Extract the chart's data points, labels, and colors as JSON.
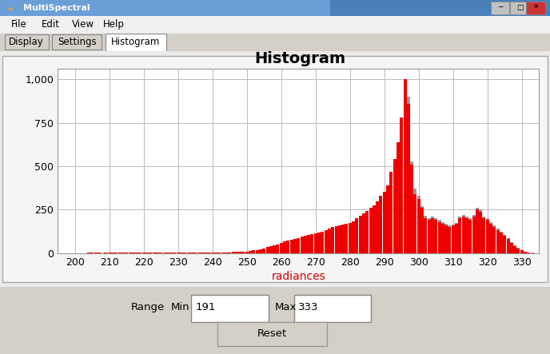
{
  "title": "Histogram",
  "xlabel": "radiances",
  "xlabel_color": "#cc0000",
  "title_fontsize": 14,
  "title_fontweight": "bold",
  "xlim": [
    195,
    335
  ],
  "ylim": [
    0,
    1060
  ],
  "yticks": [
    0,
    250,
    500,
    750,
    1000
  ],
  "xticks": [
    200,
    210,
    220,
    230,
    240,
    250,
    260,
    270,
    280,
    290,
    300,
    310,
    320,
    330
  ],
  "bar_color_red": "#ee0000",
  "bar_color_gray": "#999999",
  "bg_color": "#d4d0c8",
  "plot_bg_color": "#ffffff",
  "grid_color": "#bbbbbb",
  "red_values": {
    "200": 0,
    "201": 0,
    "202": 1,
    "203": 0,
    "204": 2,
    "205": 4,
    "206": 3,
    "207": 2,
    "208": 1,
    "209": 3,
    "210": 5,
    "211": 4,
    "212": 3,
    "213": 3,
    "214": 4,
    "215": 3,
    "216": 2,
    "217": 3,
    "218": 2,
    "219": 2,
    "220": 4,
    "221": 3,
    "222": 3,
    "223": 2,
    "224": 3,
    "225": 2,
    "226": 2,
    "227": 2,
    "228": 3,
    "229": 2,
    "230": 3,
    "231": 2,
    "232": 2,
    "233": 3,
    "234": 2,
    "235": 2,
    "236": 2,
    "237": 3,
    "238": 2,
    "239": 2,
    "240": 3,
    "241": 4,
    "242": 3,
    "243": 3,
    "244": 4,
    "245": 5,
    "246": 6,
    "247": 7,
    "248": 8,
    "249": 8,
    "250": 10,
    "251": 12,
    "252": 15,
    "253": 18,
    "254": 22,
    "255": 28,
    "256": 35,
    "257": 40,
    "258": 45,
    "259": 50,
    "260": 60,
    "261": 68,
    "262": 72,
    "263": 75,
    "264": 80,
    "265": 88,
    "266": 95,
    "267": 100,
    "268": 105,
    "269": 110,
    "270": 115,
    "271": 120,
    "272": 125,
    "273": 130,
    "274": 140,
    "275": 150,
    "276": 155,
    "277": 160,
    "278": 165,
    "279": 170,
    "280": 175,
    "281": 185,
    "282": 200,
    "283": 215,
    "284": 230,
    "285": 245,
    "286": 260,
    "287": 275,
    "288": 300,
    "289": 330,
    "290": 355,
    "291": 390,
    "292": 470,
    "293": 540,
    "294": 640,
    "295": 780,
    "296": 1000,
    "297": 860,
    "298": 510,
    "299": 340,
    "300": 310,
    "301": 260,
    "302": 200,
    "303": 190,
    "304": 200,
    "305": 190,
    "306": 180,
    "307": 170,
    "308": 160,
    "309": 150,
    "310": 160,
    "311": 170,
    "312": 200,
    "313": 210,
    "314": 200,
    "315": 190,
    "316": 210,
    "317": 250,
    "318": 240,
    "319": 200,
    "320": 190,
    "321": 170,
    "322": 150,
    "323": 130,
    "324": 120,
    "325": 100,
    "326": 80,
    "327": 60,
    "328": 40,
    "329": 25,
    "330": 15,
    "331": 8,
    "332": 4,
    "333": 1
  },
  "gray_values": {
    "200": 0,
    "201": 0,
    "202": 1,
    "203": 0,
    "204": 2,
    "205": 4,
    "206": 3,
    "207": 2,
    "208": 1,
    "209": 3,
    "210": 5,
    "211": 4,
    "212": 3,
    "213": 3,
    "214": 4,
    "215": 3,
    "216": 2,
    "217": 3,
    "218": 2,
    "219": 2,
    "220": 4,
    "221": 3,
    "222": 3,
    "223": 2,
    "224": 3,
    "225": 2,
    "226": 2,
    "227": 2,
    "228": 3,
    "229": 2,
    "230": 3,
    "231": 2,
    "232": 2,
    "233": 3,
    "234": 2,
    "235": 2,
    "236": 2,
    "237": 3,
    "238": 2,
    "239": 2,
    "240": 3,
    "241": 4,
    "242": 3,
    "243": 3,
    "244": 4,
    "245": 5,
    "246": 6,
    "247": 7,
    "248": 8,
    "249": 8,
    "250": 10,
    "251": 12,
    "252": 15,
    "253": 18,
    "254": 22,
    "255": 28,
    "256": 35,
    "257": 40,
    "258": 45,
    "259": 50,
    "260": 60,
    "261": 68,
    "262": 72,
    "263": 75,
    "264": 80,
    "265": 88,
    "266": 95,
    "267": 100,
    "268": 105,
    "269": 110,
    "270": 115,
    "271": 120,
    "272": 125,
    "273": 130,
    "274": 140,
    "275": 150,
    "276": 155,
    "277": 160,
    "278": 165,
    "279": 170,
    "280": 175,
    "281": 185,
    "282": 200,
    "283": 215,
    "284": 230,
    "285": 245,
    "286": 260,
    "287": 275,
    "288": 300,
    "289": 330,
    "290": 355,
    "291": 390,
    "292": 470,
    "293": 540,
    "294": 640,
    "295": 780,
    "296": 1000,
    "297": 900,
    "298": 530,
    "299": 370,
    "300": 330,
    "301": 270,
    "302": 215,
    "303": 200,
    "304": 210,
    "305": 200,
    "306": 190,
    "307": 180,
    "308": 170,
    "309": 160,
    "310": 165,
    "311": 175,
    "312": 210,
    "313": 220,
    "314": 210,
    "315": 200,
    "316": 220,
    "317": 260,
    "318": 250,
    "319": 210,
    "320": 200,
    "321": 180,
    "322": 160,
    "323": 140,
    "324": 125,
    "325": 105,
    "326": 85,
    "327": 65,
    "328": 45,
    "329": 30,
    "330": 18,
    "331": 10,
    "332": 5,
    "333": 2
  },
  "window_title": "MultiSpectral",
  "menu_items": [
    "File",
    "Edit",
    "View",
    "Help"
  ],
  "tab_labels": [
    "Display",
    "Settings",
    "Histogram"
  ],
  "range_min": "191",
  "range_max": "333",
  "titlebar_color": "#5b8db8",
  "titlebar_text_color": "#ffffff"
}
